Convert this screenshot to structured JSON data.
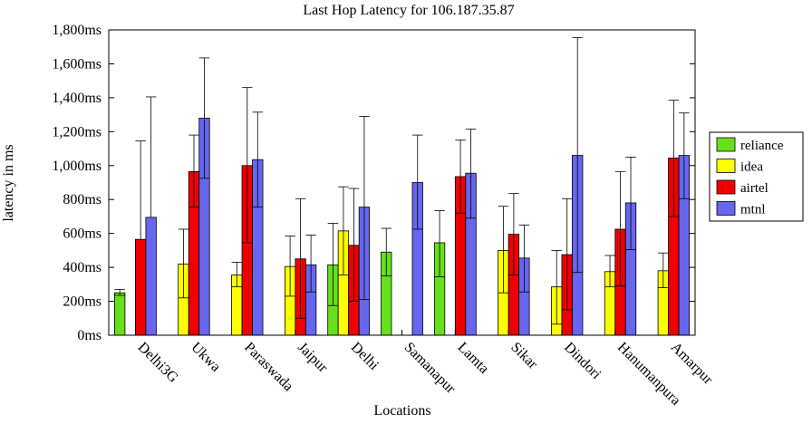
{
  "chart_data": {
    "type": "bar",
    "title": "Last Hop Latency for 106.187.35.87",
    "xlabel": "Locations",
    "ylabel": "latency in ms",
    "ylim": [
      0,
      1800
    ],
    "y_ticks": [
      "0ms",
      "200ms",
      "400ms",
      "600ms",
      "800ms",
      "1,000ms",
      "1,200ms",
      "1,400ms",
      "1,600ms",
      "1,800ms"
    ],
    "y_tick_values": [
      0,
      200,
      400,
      600,
      800,
      1000,
      1200,
      1400,
      1600,
      1800
    ],
    "legend_position": "right",
    "grid": false,
    "categories": [
      "Delhi3G",
      "Ukwa",
      "Paraswada",
      "Jaipur",
      "Delhi",
      "Samanapur",
      "Lamta",
      "Sikar",
      "Dindori",
      "Hanumanpura",
      "Amarpur"
    ],
    "series": [
      {
        "name": "reliance",
        "color": "#66e01a",
        "values": [
          250,
          null,
          null,
          null,
          415,
          490,
          545,
          null,
          null,
          null,
          null
        ],
        "err_low": [
          235,
          null,
          null,
          null,
          175,
          350,
          345,
          null,
          null,
          null,
          null
        ],
        "err_high": [
          270,
          null,
          null,
          null,
          660,
          630,
          735,
          null,
          null,
          null,
          null
        ]
      },
      {
        "name": "idea",
        "color": "#ffff00",
        "values": [
          null,
          420,
          355,
          405,
          615,
          null,
          null,
          500,
          285,
          375,
          380
        ],
        "err_low": [
          null,
          220,
          285,
          230,
          355,
          null,
          null,
          250,
          65,
          285,
          280
        ],
        "err_high": [
          null,
          625,
          430,
          585,
          875,
          null,
          null,
          760,
          500,
          470,
          485
        ]
      },
      {
        "name": "airtel",
        "color": "#ee0000",
        "values": [
          565,
          965,
          1000,
          450,
          530,
          null,
          935,
          595,
          475,
          625,
          1045
        ],
        "err_low": [
          null,
          755,
          545,
          100,
          200,
          null,
          720,
          355,
          150,
          290,
          700
        ],
        "err_high": [
          1145,
          1180,
          1460,
          805,
          865,
          null,
          1150,
          835,
          805,
          965,
          1385
        ]
      },
      {
        "name": "mtnl",
        "color": "#6666ee",
        "values": [
          695,
          1280,
          1035,
          415,
          755,
          900,
          955,
          455,
          1060,
          780,
          1060
        ],
        "err_low": [
          null,
          925,
          755,
          255,
          210,
          625,
          690,
          255,
          370,
          505,
          805
        ],
        "err_high": [
          1405,
          1635,
          1315,
          590,
          1290,
          1180,
          1215,
          650,
          1755,
          1050,
          1310
        ]
      }
    ]
  }
}
